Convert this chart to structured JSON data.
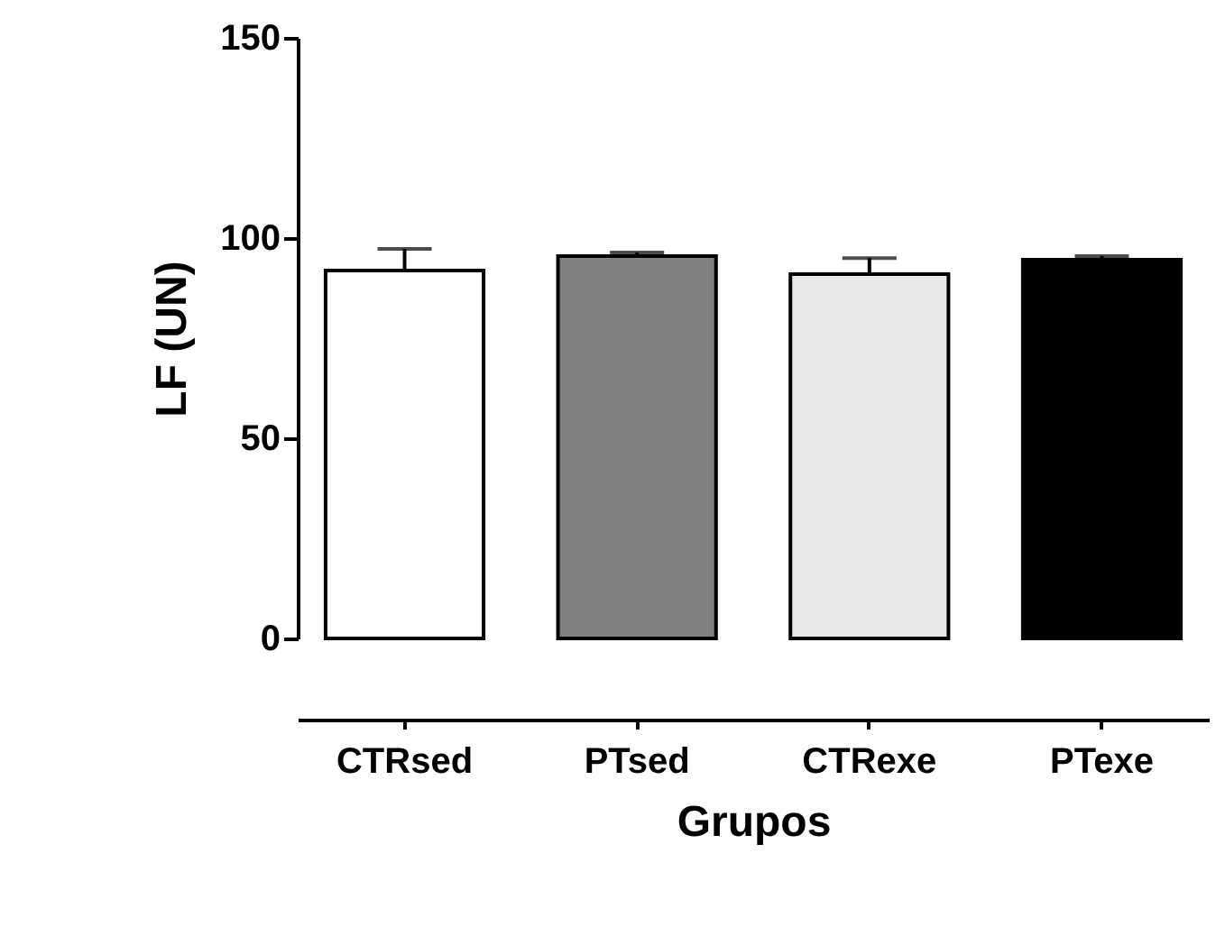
{
  "chart_data": {
    "type": "bar",
    "xlabel": "Grupos",
    "ylabel": "LF (UN)",
    "categories": [
      "CTRsed",
      "PTsed",
      "CTRexe",
      "PTexe"
    ],
    "values": [
      91.9,
      95.5,
      91,
      94.6
    ],
    "colors": [
      "#ffffff",
      "#808080",
      "#e8e8e8",
      "#000000"
    ],
    "errors": [
      [
        91.9,
        97.3
      ],
      [
        95.5,
        96.4
      ],
      [
        91,
        95
      ],
      [
        94.6,
        95.5
      ]
    ],
    "ylim": [
      0,
      150
    ],
    "yticks": [
      0,
      50,
      100,
      150
    ],
    "grid": false
  }
}
